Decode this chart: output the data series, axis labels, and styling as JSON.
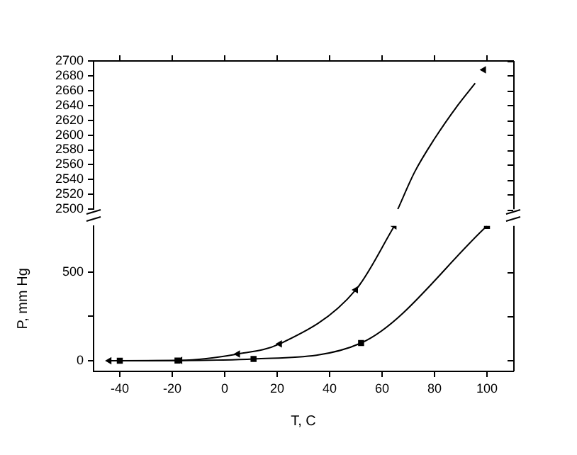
{
  "chart_data": [
    {
      "type": "line",
      "xlim": [
        -50,
        110
      ],
      "xticks": [
        -40,
        -20,
        0,
        20,
        40,
        60,
        80,
        100
      ],
      "ylim": [
        2500,
        2700
      ],
      "yticks": [
        2500,
        2520,
        2540,
        2560,
        2580,
        2600,
        2620,
        2640,
        2660,
        2680,
        2700
      ],
      "tick_labels": "y",
      "grid": false,
      "legend": false,
      "series": [
        {
          "type": "scatter",
          "color": "#000000",
          "marker": "triangle",
          "x": [
            98.8
          ],
          "values": [
            2688
          ]
        },
        {
          "type": "line",
          "color": "#000000",
          "marker": "none",
          "x": [
            66,
            72.4,
            80,
            88.6,
            95.5
          ],
          "values": [
            2500,
            2550,
            2595,
            2639,
            2670
          ]
        }
      ]
    },
    {
      "type": "line",
      "xlim": [
        -50,
        110
      ],
      "xticks": [
        -40,
        -20,
        0,
        20,
        40,
        60,
        80,
        100
      ],
      "ylim": [
        -60,
        760
      ],
      "yticks": [
        0,
        {
          "value": 250,
          "label": null
        },
        500
      ],
      "xlabel": "T, C",
      "ylabel": "P, mm Hg",
      "grid": false,
      "legend": false,
      "series": [
        {
          "type": "line",
          "color": "#000000",
          "marker": "triangle",
          "x": [
            -44,
            -17,
            5,
            21,
            50,
            64.7
          ],
          "values": [
            0,
            2,
            38,
            95,
            400,
            760
          ]
        },
        {
          "type": "line",
          "color": "#000000",
          "marker": "square",
          "x": [
            -40,
            -18,
            11,
            52,
            100
          ],
          "values": [
            0,
            1,
            10,
            100,
            760
          ]
        }
      ]
    }
  ]
}
